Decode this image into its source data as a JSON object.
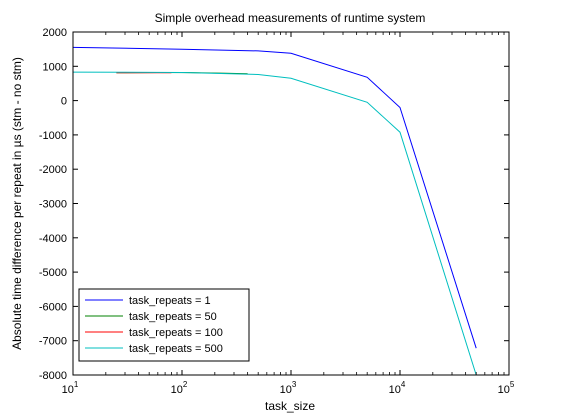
{
  "chart_data": {
    "type": "line",
    "title": "Simple overhead measurements of runtime system",
    "xlabel": "task_size",
    "ylabel": "Absolute time difference per repeat in µs (stm - no stm)",
    "x_scale": "log",
    "xlim": [
      10,
      100000
    ],
    "ylim": [
      -8000,
      2000
    ],
    "x_ticks": [
      {
        "value": 10,
        "base": "10",
        "exp": "1"
      },
      {
        "value": 100,
        "base": "10",
        "exp": "2"
      },
      {
        "value": 1000,
        "base": "10",
        "exp": "3"
      },
      {
        "value": 10000,
        "base": "10",
        "exp": "4"
      },
      {
        "value": 100000,
        "base": "10",
        "exp": "5"
      }
    ],
    "y_ticks": [
      2000,
      1000,
      0,
      -1000,
      -2000,
      -3000,
      -4000,
      -5000,
      -6000,
      -7000,
      -8000
    ],
    "y_tick_labels": [
      "2000",
      "1000",
      "0",
      "-1000",
      "-2000",
      "-3000",
      "-4000",
      "-5000",
      "-6000",
      "-7000",
      "-8000"
    ],
    "legend_position": "bottom-left",
    "series": [
      {
        "name": "task_repeats = 1",
        "color": "#0000ff",
        "x": [
          10,
          100,
          500,
          1000,
          5000,
          10000,
          50000
        ],
        "y": [
          1550,
          1500,
          1450,
          1380,
          680,
          -200,
          -7220
        ]
      },
      {
        "name": "task_repeats = 50",
        "color": "#008000",
        "x": [
          25,
          60,
          120,
          250,
          400
        ],
        "y": [
          810,
          820,
          815,
          800,
          780
        ]
      },
      {
        "name": "task_repeats = 100",
        "color": "#ff0000",
        "x": [
          25,
          40,
          60,
          80
        ],
        "y": [
          812,
          812,
          812,
          812
        ]
      },
      {
        "name": "task_repeats = 500",
        "color": "#00bfbf",
        "x": [
          10,
          100,
          500,
          1000,
          5000,
          10000,
          50000
        ],
        "y": [
          830,
          820,
          760,
          650,
          -50,
          -920,
          -8000
        ]
      }
    ]
  }
}
